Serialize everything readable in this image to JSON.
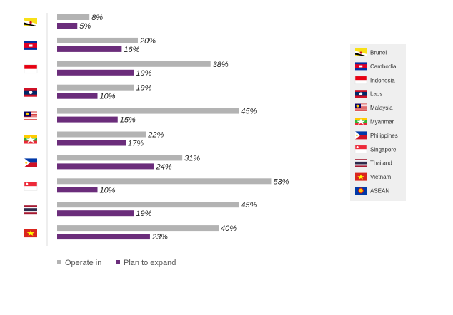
{
  "chart_data": {
    "type": "bar",
    "orientation": "horizontal",
    "categories": [
      "Brunei",
      "Cambodia",
      "Indonesia",
      "Laos",
      "Malaysia",
      "Myanmar",
      "Philippines",
      "Singapore",
      "Thailand",
      "Vietnam"
    ],
    "value_suffix": "%",
    "series": [
      {
        "name": "Operate in",
        "color": "#b3b3b3",
        "values": [
          8,
          20,
          38,
          19,
          45,
          22,
          31,
          53,
          45,
          40
        ]
      },
      {
        "name": "Plan to expand",
        "color": "#6b2d7b",
        "values": [
          5,
          16,
          19,
          10,
          15,
          17,
          24,
          10,
          19,
          23
        ]
      }
    ],
    "legend_position": "bottom-left",
    "xlim": [
      0,
      55
    ],
    "grid": false
  },
  "flag_key": {
    "items": [
      {
        "label": "Brunei",
        "icon": "brunei-flag-icon"
      },
      {
        "label": "Cambodia",
        "icon": "cambodia-flag-icon"
      },
      {
        "label": "Indonesia",
        "icon": "indonesia-flag-icon"
      },
      {
        "label": "Laos",
        "icon": "laos-flag-icon"
      },
      {
        "label": "Malaysia",
        "icon": "malaysia-flag-icon"
      },
      {
        "label": "Myanmar",
        "icon": "myanmar-flag-icon"
      },
      {
        "label": "Philippines",
        "icon": "philippines-flag-icon"
      },
      {
        "label": "Singapore",
        "icon": "singapore-flag-icon"
      },
      {
        "label": "Thailand",
        "icon": "thailand-flag-icon"
      },
      {
        "label": "Vietnam",
        "icon": "vietnam-flag-icon"
      },
      {
        "label": "ASEAN",
        "icon": "asean-flag-icon"
      }
    ]
  }
}
